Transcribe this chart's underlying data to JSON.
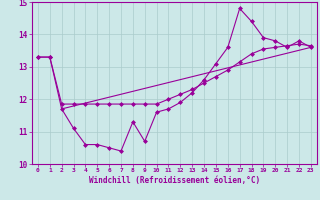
{
  "xlabel": "Windchill (Refroidissement éolien,°C)",
  "xlim": [
    -0.5,
    23.5
  ],
  "ylim": [
    10,
    15
  ],
  "yticks": [
    10,
    11,
    12,
    13,
    14,
    15
  ],
  "xticks": [
    0,
    1,
    2,
    3,
    4,
    5,
    6,
    7,
    8,
    9,
    10,
    11,
    12,
    13,
    14,
    15,
    16,
    17,
    18,
    19,
    20,
    21,
    22,
    23
  ],
  "bg_color": "#cce8e8",
  "line_color": "#990099",
  "grid_color": "#aacccc",
  "series1_x": [
    0,
    1,
    2,
    3,
    4,
    5,
    6,
    7,
    8,
    9,
    10,
    11,
    12,
    13,
    14,
    15,
    16,
    17,
    18,
    19,
    20,
    21,
    22,
    23
  ],
  "series1_y": [
    13.3,
    13.3,
    11.7,
    11.1,
    10.6,
    10.6,
    10.5,
    10.4,
    11.3,
    10.7,
    11.6,
    11.7,
    11.9,
    12.2,
    12.6,
    13.1,
    13.6,
    14.8,
    14.4,
    13.9,
    13.8,
    13.6,
    13.8,
    13.6
  ],
  "series2_x": [
    0,
    1,
    2,
    3,
    4,
    5,
    6,
    7,
    8,
    9,
    10,
    11,
    12,
    13,
    14,
    15,
    16,
    17,
    18,
    19,
    20,
    21,
    22,
    23
  ],
  "series2_y": [
    13.3,
    13.3,
    11.85,
    11.85,
    11.85,
    11.85,
    11.85,
    11.85,
    11.85,
    11.85,
    11.85,
    12.0,
    12.15,
    12.3,
    12.5,
    12.7,
    12.9,
    13.15,
    13.4,
    13.55,
    13.6,
    13.65,
    13.7,
    13.65
  ],
  "series3_x": [
    2,
    23
  ],
  "series3_y": [
    11.7,
    13.6
  ]
}
